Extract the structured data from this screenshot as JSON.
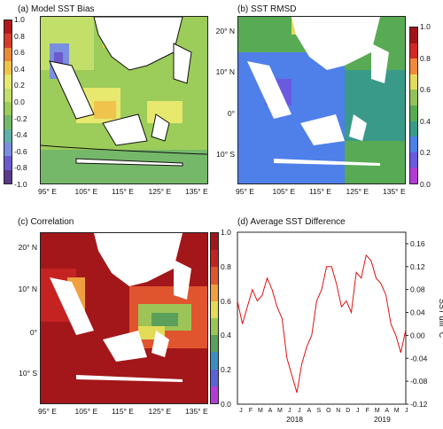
{
  "panels": {
    "a": {
      "title": "(a) Model SST Bias",
      "cbar_ticks": [
        "1.0",
        "0.8",
        "0.6",
        "0.4",
        "0.2",
        "0.0",
        "-0.2",
        "-0.4",
        "-0.6",
        "-0.8",
        "-1.0"
      ]
    },
    "b": {
      "title": "(b) SST RMSD",
      "cbar_ticks": [
        "1.0",
        "0.8",
        "0.6",
        "0.4",
        "0.2",
        "0.0"
      ]
    },
    "c": {
      "title": "(c) Correlation",
      "cbar_ticks": [
        "1.0",
        "0.8",
        "0.6",
        "0.4",
        "0.2",
        "0.0"
      ]
    },
    "d": {
      "title": "(d) Average SST Difference"
    }
  },
  "map_axes": {
    "lon_ticks": [
      "95° E",
      "105° E",
      "115° E",
      "125° E",
      "135° E"
    ],
    "lat_ticks": [
      "20° N",
      "10° N",
      "0°",
      "10° S"
    ]
  },
  "colors": {
    "bias": [
      "#5b3a8c",
      "#6a5acd",
      "#7b8fe0",
      "#5fb0a8",
      "#76b86a",
      "#9ccc5a",
      "#c2df6a",
      "#e7e86e",
      "#f0c44c",
      "#e88a36",
      "#d63a2a",
      "#b0181d"
    ],
    "rmsd": [
      "#b43cd6",
      "#6a5ae0",
      "#4f7fe8",
      "#3a9a8a",
      "#59aa54",
      "#93c25a",
      "#e3db5e",
      "#f08a3a",
      "#cf2a26",
      "#a01419"
    ],
    "corr": [
      "#b43cd6",
      "#5a64d8",
      "#3d8ec0",
      "#5aa05a",
      "#9cc456",
      "#e2dc58",
      "#f0a040",
      "#e0552e",
      "#c52222",
      "#a3171a"
    ],
    "land": "#ffffff",
    "line": "#e01010"
  },
  "chart_data": {
    "type": "line",
    "title": "(d) Average SST Difference",
    "ylabel": "SST diff °C",
    "ylim": [
      -0.12,
      0.18
    ],
    "yticks": [
      "0.16",
      "0.12",
      "0.08",
      "0.04",
      "0.00",
      "-0.04",
      "-0.08",
      "-0.12"
    ],
    "month_labels": [
      "J",
      "F",
      "M",
      "A",
      "M",
      "J",
      "J",
      "A",
      "S",
      "O",
      "N",
      "D",
      "J",
      "F",
      "M",
      "A",
      "M",
      "J"
    ],
    "year_labels": [
      "2018",
      "2019"
    ],
    "x": [
      0,
      0.5,
      1,
      1.5,
      2,
      2.5,
      3,
      3.5,
      4,
      4.5,
      5,
      5.5,
      6,
      6.5,
      7,
      7.5,
      8,
      8.5,
      9,
      9.5,
      10,
      10.5,
      11,
      11.5,
      12,
      12.5,
      13,
      13.5,
      14,
      14.5,
      15,
      15.5,
      16,
      16.5,
      17
    ],
    "values": [
      0.06,
      0.02,
      0.05,
      0.08,
      0.06,
      0.07,
      0.1,
      0.08,
      0.05,
      0.03,
      -0.04,
      -0.07,
      -0.1,
      -0.05,
      -0.02,
      0.0,
      0.06,
      0.08,
      0.12,
      0.12,
      0.09,
      0.05,
      0.06,
      0.04,
      0.11,
      0.1,
      0.14,
      0.13,
      0.1,
      0.09,
      0.07,
      0.02,
      0.0,
      -0.03,
      0.01
    ]
  }
}
